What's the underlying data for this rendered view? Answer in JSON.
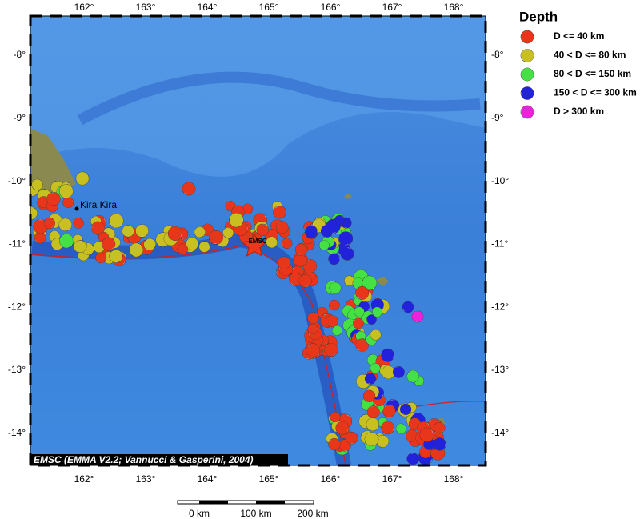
{
  "map": {
    "lon_labels": [
      "162°",
      "163°",
      "164°",
      "165°",
      "166°",
      "167°",
      "168°"
    ],
    "lat_labels": [
      "-8°",
      "-9°",
      "-10°",
      "-11°",
      "-12°",
      "-13°",
      "-14°"
    ],
    "places": [
      {
        "label": "Kira Kira"
      }
    ],
    "star_label": "EMSC",
    "credit": "EMSC (EMMA V2.2; Vannucci & Gasperini, 2004)",
    "scale_labels": [
      "0 km",
      "100 km",
      "200 km"
    ]
  },
  "legend": {
    "title": "Depth",
    "items": [
      {
        "label": "D <= 40 km",
        "color": "#e8361a"
      },
      {
        "label": "40 < D <= 80 km",
        "color": "#c8c020"
      },
      {
        "label": "80 < D <= 150 km",
        "color": "#44e044"
      },
      {
        "label": "150 < D <= 300 km",
        "color": "#2222dd"
      },
      {
        "label": "D > 300 km",
        "color": "#ee22dd"
      }
    ]
  }
}
